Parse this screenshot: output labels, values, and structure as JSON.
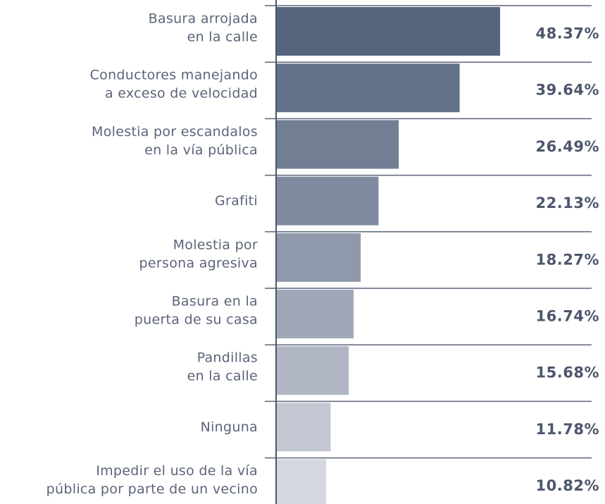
{
  "chart_data": {
    "type": "bar",
    "orientation": "horizontal",
    "categories": [
      [
        "Basura arrojada",
        "en la calle"
      ],
      [
        "Conductores manejando",
        "a exceso de velocidad"
      ],
      [
        "Molestia por escandalos",
        "en la vía pública"
      ],
      [
        "Grafiti"
      ],
      [
        "Molestia por",
        "persona agresiva"
      ],
      [
        "Basura en la",
        "puerta de su casa"
      ],
      [
        "Pandillas",
        "en la calle"
      ],
      [
        "Ninguna"
      ],
      [
        "Impedir el uso de la vía",
        "pública por parte de un vecino"
      ]
    ],
    "values": [
      48.37,
      39.64,
      26.49,
      22.13,
      18.27,
      16.74,
      15.68,
      11.78,
      10.82
    ],
    "value_labels": [
      "48.37%",
      "39.64%",
      "26.49%",
      "22.13%",
      "18.27%",
      "16.74%",
      "15.68%",
      "11.78%",
      "10.82%"
    ],
    "colors": [
      "#56657d",
      "#637189",
      "#727e94",
      "#7f8aa0",
      "#8f99ab",
      "#a0a8b8",
      "#b0b6c4",
      "#c4c8d3",
      "#d4d7df"
    ]
  }
}
